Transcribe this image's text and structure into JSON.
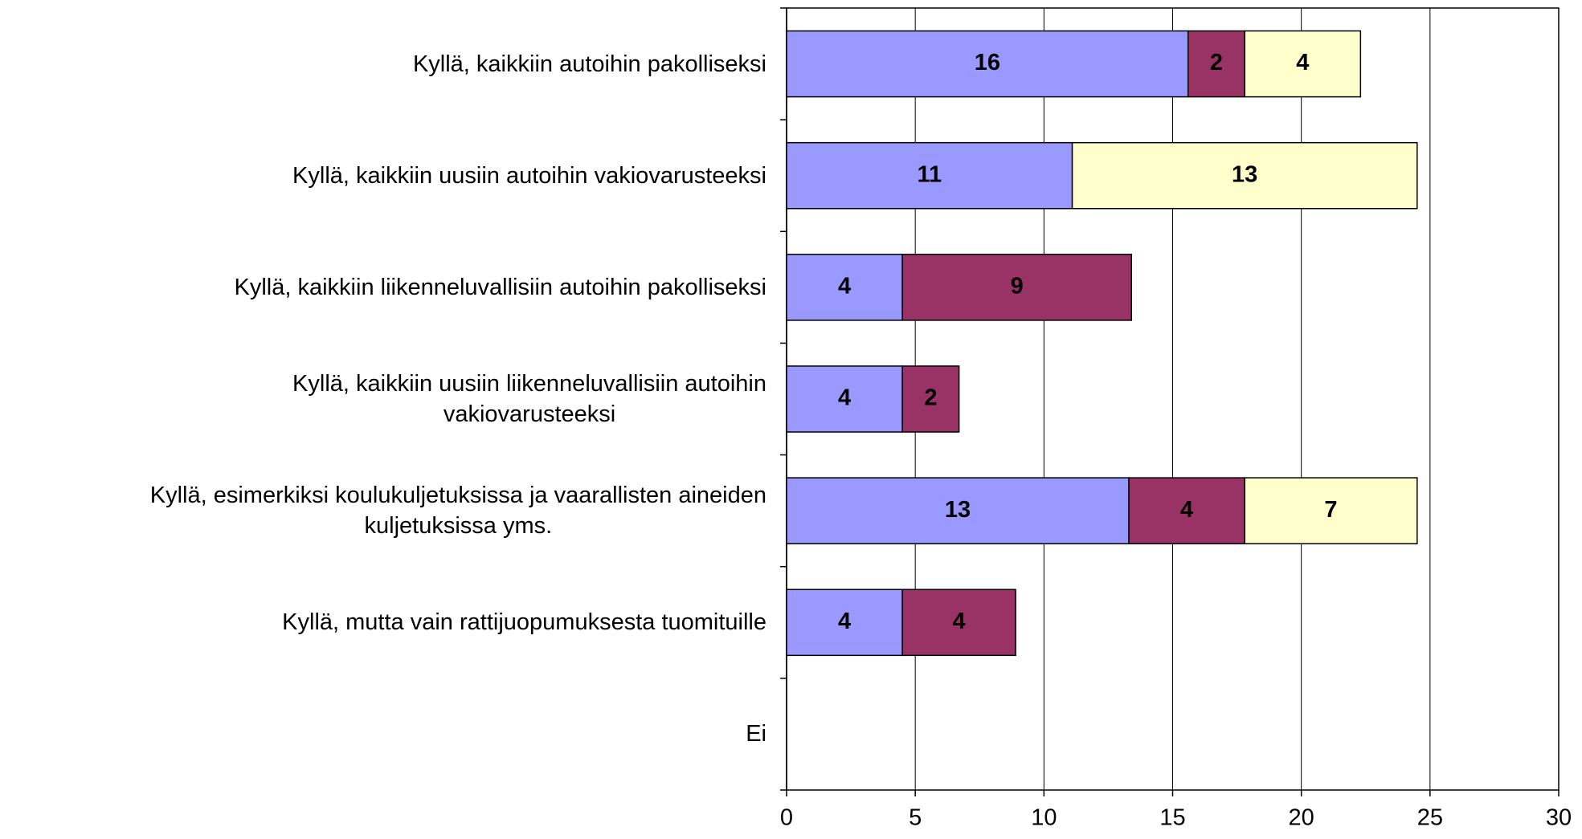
{
  "chart_data": {
    "type": "stacked_barh",
    "categories": [
      "Kyllä, kaikkiin autoihin pakolliseksi",
      "Kyllä, kaikkiin uusiin autoihin vakiovarusteeksi",
      "Kyllä, kaikkiin liikenneluvallisiin autoihin pakolliseksi",
      "Kyllä, kaikkiin uusiin liikenneluvallisiin autoihin\nvakiovarusteeksi",
      "Kyllä, esimerkiksi koulukuljetuksissa ja vaarallisten aineiden\nkuljetuksissa yms.",
      "Kyllä, mutta vain rattijuopumuksesta tuomituille",
      "Ei"
    ],
    "series": [
      {
        "color": "#9999ff",
        "values": [
          15.6,
          11.1,
          4.5,
          4.5,
          13.3,
          4.5,
          null
        ],
        "value_labels": [
          "16",
          "11",
          "4",
          "4",
          "13",
          "4",
          null
        ]
      },
      {
        "color": "#993366",
        "values": [
          2.2,
          null,
          8.9,
          2.2,
          4.5,
          4.4,
          null
        ],
        "value_labels": [
          "2",
          null,
          "9",
          "2",
          "4",
          "4",
          null
        ]
      },
      {
        "color": "#ffffcc",
        "values": [
          4.5,
          13.4,
          null,
          null,
          6.7,
          null,
          null
        ],
        "value_labels": [
          "4",
          "13",
          null,
          null,
          "7",
          null,
          null
        ]
      }
    ],
    "xlim": [
      0,
      30
    ],
    "xticks": [
      0,
      5,
      10,
      15,
      20,
      25,
      30
    ],
    "grid": true
  }
}
